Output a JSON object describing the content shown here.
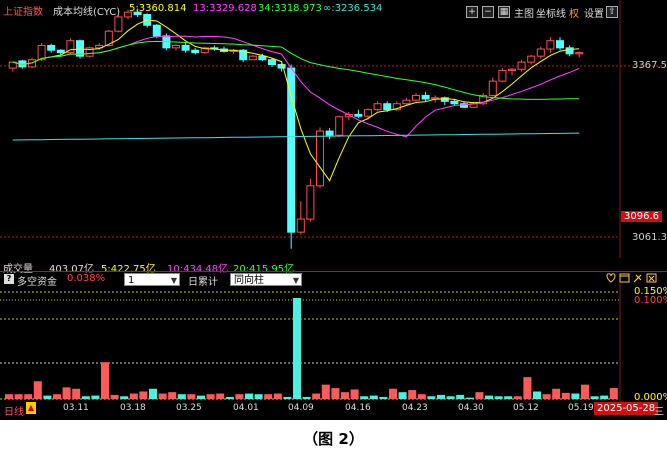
{
  "header": {
    "index_name": "上证指数",
    "indicator_name": "成本均线(CYC)",
    "items": [
      {
        "label": "5:3360.814",
        "color": "#ffff00"
      },
      {
        "label": "13:3329.628",
        "color": "#ff44ff"
      },
      {
        "label": "34:3318.973",
        "color": "#33ff33"
      },
      {
        "label": "∞:3236.534",
        "color": "#44dddd"
      }
    ],
    "buttons": {
      "main_chart": "主图",
      "axis": "坐标线",
      "right": "权",
      "settings": "设置"
    }
  },
  "price_axis": {
    "labels": [
      "3367.5",
      "3096.6",
      "3061.3"
    ],
    "current_value": "3096.6"
  },
  "volume_row": {
    "label": "成交量",
    "value": "403.07亿",
    "items": [
      {
        "label": "5:422.75亿",
        "color": "#ffff00"
      },
      {
        "label": "10:434.48亿",
        "color": "#ff44ff"
      },
      {
        "label": "20:415.95亿",
        "color": "#33ff33"
      }
    ]
  },
  "lower_panel": {
    "question_icon": "?",
    "title": "多空资金",
    "value": "0.038%",
    "select_period": "1",
    "cumulative_label": "日累计",
    "select_mode": "同向柱",
    "axis_labels": [
      "0.150%",
      "0.100%",
      "0.000%"
    ]
  },
  "bottom_bar": {
    "period_label": "日线",
    "warn_icon": "▲",
    "dates": [
      "03.11",
      "03.18",
      "03.25",
      "04.01",
      "04.09",
      "04.16",
      "04.23",
      "04.30",
      "05.12",
      "05.19"
    ],
    "current_date": "2025-05-28",
    "menu_icon": "三"
  },
  "caption": "（图 2）",
  "chart_data": [
    {
      "type": "candlestick",
      "title": "上证指数 成本均线(CYC)",
      "ma_series": [
        {
          "name": "5",
          "last": 3360.814,
          "color": "#ffff00"
        },
        {
          "name": "13",
          "last": 3329.628,
          "color": "#ff44ff"
        },
        {
          "name": "34",
          "last": 3318.973,
          "color": "#33ff33"
        },
        {
          "name": "∞",
          "last": 3236.534,
          "color": "#44dddd"
        }
      ],
      "candles": [
        [
          3346,
          3356,
          3357,
          3340
        ],
        [
          3358,
          3348,
          3360,
          3345
        ],
        [
          3348,
          3360,
          3363,
          3346
        ],
        [
          3360,
          3384,
          3388,
          3358
        ],
        [
          3384,
          3376,
          3387,
          3372
        ],
        [
          3376,
          3372,
          3378,
          3368
        ],
        [
          3372,
          3392,
          3396,
          3370
        ],
        [
          3392,
          3366,
          3394,
          3362
        ],
        [
          3366,
          3380,
          3382,
          3364
        ],
        [
          3380,
          3384,
          3388,
          3377
        ],
        [
          3384,
          3408,
          3410,
          3382
        ],
        [
          3408,
          3432,
          3436,
          3406
        ],
        [
          3432,
          3440,
          3444,
          3428
        ],
        [
          3440,
          3436,
          3446,
          3432
        ],
        [
          3436,
          3418,
          3438,
          3414
        ],
        [
          3418,
          3400,
          3420,
          3396
        ],
        [
          3400,
          3380,
          3404,
          3376
        ],
        [
          3380,
          3384,
          3386,
          3376
        ],
        [
          3384,
          3376,
          3388,
          3372
        ],
        [
          3376,
          3372,
          3380,
          3369
        ],
        [
          3372,
          3380,
          3382,
          3370
        ],
        [
          3380,
          3378,
          3384,
          3375
        ],
        [
          3378,
          3374,
          3382,
          3372
        ],
        [
          3374,
          3376,
          3378,
          3370
        ],
        [
          3376,
          3360,
          3378,
          3356
        ],
        [
          3360,
          3366,
          3368,
          3362
        ],
        [
          3366,
          3360,
          3370,
          3358
        ],
        [
          3360,
          3352,
          3362,
          3348
        ],
        [
          3352,
          3346,
          3355,
          3340
        ],
        [
          3346,
          3070,
          3352,
          3042
        ],
        [
          3070,
          3092,
          3122,
          3066
        ],
        [
          3092,
          3148,
          3160,
          3088
        ],
        [
          3148,
          3240,
          3246,
          3144
        ],
        [
          3240,
          3233,
          3245,
          3226
        ],
        [
          3233,
          3264,
          3266,
          3230
        ],
        [
          3264,
          3268,
          3272,
          3258
        ],
        [
          3268,
          3265,
          3276,
          3262
        ],
        [
          3265,
          3276,
          3278,
          3260
        ],
        [
          3276,
          3286,
          3290,
          3274
        ],
        [
          3286,
          3276,
          3290,
          3272
        ],
        [
          3276,
          3286,
          3290,
          3274
        ],
        [
          3286,
          3292,
          3296,
          3284
        ],
        [
          3292,
          3300,
          3304,
          3290
        ],
        [
          3300,
          3294,
          3306,
          3290
        ],
        [
          3294,
          3296,
          3300,
          3288
        ],
        [
          3296,
          3290,
          3298,
          3284
        ],
        [
          3290,
          3286,
          3294,
          3282
        ],
        [
          3286,
          3280,
          3290,
          3279
        ],
        [
          3280,
          3286,
          3289,
          3279
        ],
        [
          3286,
          3300,
          3304,
          3284
        ],
        [
          3300,
          3324,
          3330,
          3298
        ],
        [
          3324,
          3342,
          3346,
          3322
        ],
        [
          3342,
          3344,
          3346,
          3334
        ],
        [
          3344,
          3356,
          3360,
          3340
        ],
        [
          3356,
          3366,
          3368,
          3352
        ],
        [
          3366,
          3378,
          3382,
          3362
        ],
        [
          3378,
          3392,
          3398,
          3372
        ],
        [
          3392,
          3380,
          3398,
          3376
        ],
        [
          3380,
          3370,
          3384,
          3366
        ],
        [
          3370,
          3372,
          3374,
          3364
        ]
      ]
    },
    {
      "type": "bar",
      "title": "多空资金",
      "ylabel": "%",
      "ylim": [
        0,
        0.17
      ],
      "values": [
        0.007,
        0.007,
        0.007,
        0.026,
        0.005,
        0.007,
        0.017,
        0.015,
        0.004,
        0.005,
        0.054,
        0.006,
        0.004,
        0.008,
        0.011,
        0.015,
        0.008,
        0.01,
        0.007,
        0.007,
        0.005,
        0.007,
        0.008,
        0.003,
        0.007,
        0.008,
        0.007,
        0.007,
        0.008,
        0.003,
        0.148,
        0.003,
        0.008,
        0.021,
        0.016,
        0.01,
        0.014,
        0.004,
        0.005,
        0.003,
        0.015,
        0.01,
        0.013,
        0.007,
        0.004,
        0.006,
        0.004,
        0.006,
        0.002,
        0.01,
        0.005,
        0.004,
        0.004,
        0.004,
        0.032,
        0.011,
        0.007,
        0.015,
        0.009,
        0.008,
        0.021,
        0.004,
        0.005,
        0.016
      ],
      "colors": [
        "r",
        "r",
        "r",
        "r",
        "c",
        "r",
        "r",
        "r",
        "c",
        "c",
        "r",
        "r",
        "c",
        "r",
        "r",
        "c",
        "r",
        "r",
        "c",
        "r",
        "c",
        "r",
        "r",
        "c",
        "r",
        "c",
        "c",
        "r",
        "r",
        "c",
        "c",
        "c",
        "r",
        "r",
        "r",
        "r",
        "r",
        "c",
        "c",
        "c",
        "r",
        "c",
        "r",
        "r",
        "c",
        "c",
        "c",
        "c",
        "c",
        "r",
        "c",
        "c",
        "c",
        "r",
        "r",
        "c",
        "r",
        "r",
        "r",
        "c",
        "r",
        "c",
        "c",
        "r"
      ]
    }
  ]
}
